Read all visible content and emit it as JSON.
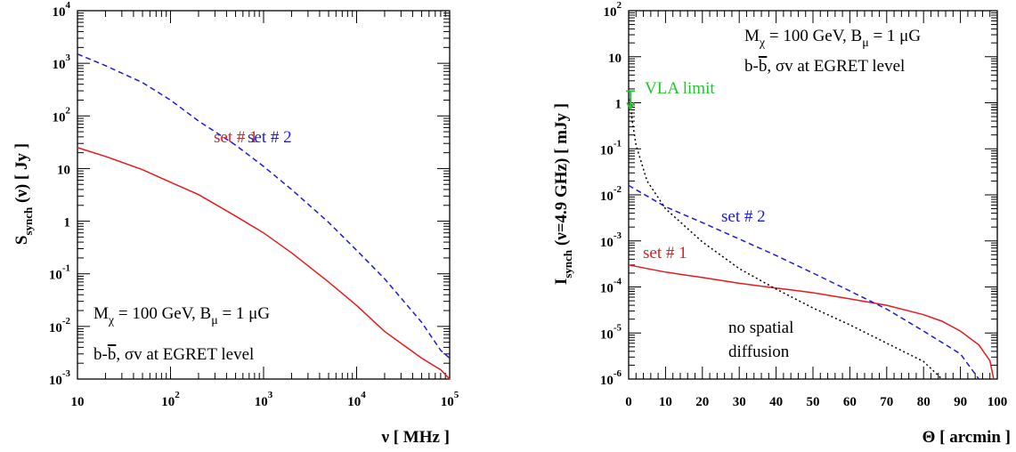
{
  "chart_data": [
    {
      "type": "line",
      "title": "",
      "xlabel": "ν [ MHz ]",
      "ylabel": "S_synch (ν) [ Jy ]",
      "xscale": "log",
      "yscale": "log",
      "xlim": [
        10,
        100000
      ],
      "ylim": [
        0.001,
        10000
      ],
      "x_ticks": [
        {
          "value": 10,
          "base": "10",
          "exp": ""
        },
        {
          "value": 100,
          "base": "10",
          "exp": "2"
        },
        {
          "value": 1000,
          "base": "10",
          "exp": "3"
        },
        {
          "value": 10000,
          "base": "10",
          "exp": "4"
        },
        {
          "value": 100000,
          "base": "10",
          "exp": "5"
        }
      ],
      "y_ticks": [
        {
          "value": 0.001,
          "base": "10",
          "exp": "-3"
        },
        {
          "value": 0.01,
          "base": "10",
          "exp": "-2"
        },
        {
          "value": 0.1,
          "base": "10",
          "exp": "-1"
        },
        {
          "value": 1,
          "base": "1",
          "exp": ""
        },
        {
          "value": 10,
          "base": "10",
          "exp": ""
        },
        {
          "value": 100,
          "base": "10",
          "exp": "2"
        },
        {
          "value": 1000,
          "base": "10",
          "exp": "3"
        },
        {
          "value": 10000,
          "base": "10",
          "exp": "4"
        }
      ],
      "series": [
        {
          "name": "set # 1",
          "color": "#e8191c",
          "dash": "solid",
          "x": [
            10,
            20,
            50,
            100,
            200,
            500,
            1000,
            2000,
            5000,
            10000,
            20000,
            50000,
            80000,
            100000
          ],
          "y": [
            25,
            17,
            9.5,
            5.5,
            3.2,
            1.25,
            0.6,
            0.25,
            0.07,
            0.025,
            0.008,
            0.0025,
            0.0015,
            0.001
          ]
        },
        {
          "name": "set # 2",
          "color": "#1a1adf",
          "dash": "dashed",
          "x": [
            10,
            20,
            50,
            100,
            200,
            500,
            1000,
            2000,
            5000,
            10000,
            20000,
            50000,
            80000,
            100000
          ],
          "y": [
            1500,
            900,
            430,
            200,
            80,
            28,
            11,
            4,
            0.95,
            0.28,
            0.08,
            0.012,
            0.0035,
            0.0025
          ]
        }
      ],
      "annotations": [
        {
          "text": "M",
          "sub": "χ",
          "rest": " = 100 GeV,  B",
          "sub2": "μ",
          "rest2": " = 1 μG"
        },
        {
          "text": "b-b̄,  σv at EGRET level"
        }
      ]
    },
    {
      "type": "line",
      "title": "",
      "xlabel": "Θ [ arcmin ]",
      "ylabel": "I_synch (ν=4.9 GHz) [ mJy ]",
      "xscale": "linear",
      "yscale": "log",
      "xlim": [
        0,
        100
      ],
      "ylim": [
        1e-06,
        100
      ],
      "x_ticks": [
        0,
        10,
        20,
        30,
        40,
        50,
        60,
        70,
        80,
        90,
        100
      ],
      "y_ticks": [
        {
          "value": 1e-06,
          "base": "10",
          "exp": "-6"
        },
        {
          "value": 1e-05,
          "base": "10",
          "exp": "-5"
        },
        {
          "value": 0.0001,
          "base": "10",
          "exp": "-4"
        },
        {
          "value": 0.001,
          "base": "10",
          "exp": "-3"
        },
        {
          "value": 0.01,
          "base": "10",
          "exp": "-2"
        },
        {
          "value": 0.1,
          "base": "10",
          "exp": "-1"
        },
        {
          "value": 1,
          "base": "1",
          "exp": ""
        },
        {
          "value": 10,
          "base": "10",
          "exp": ""
        },
        {
          "value": 100,
          "base": "10",
          "exp": "2"
        }
      ],
      "series": [
        {
          "name": "set # 1",
          "color": "#e8191c",
          "dash": "solid",
          "x": [
            0,
            10,
            20,
            30,
            40,
            50,
            60,
            70,
            80,
            85,
            90,
            95,
            98,
            99
          ],
          "y": [
            0.0003,
            0.00021,
            0.00016,
            0.00012,
            9.5e-05,
            7.5e-05,
            5.5e-05,
            4e-05,
            2.5e-05,
            1.8e-05,
            1.1e-05,
            5.5e-06,
            2.5e-06,
            1e-06
          ]
        },
        {
          "name": "set # 2",
          "color": "#1a1adf",
          "dash": "dashed",
          "x": [
            0,
            10,
            20,
            30,
            40,
            50,
            60,
            70,
            80,
            90,
            95
          ],
          "y": [
            0.016,
            0.0055,
            0.0025,
            0.0011,
            0.00048,
            0.0002,
            8.2e-05,
            3.3e-05,
            1.1e-05,
            3.5e-06,
            1e-06
          ]
        },
        {
          "name": "no spatial diffusion",
          "color": "#000000",
          "dash": "dotted",
          "x": [
            0.3,
            1,
            2,
            5,
            10,
            20,
            30,
            40,
            50,
            60,
            70,
            80,
            85
          ],
          "y": [
            1.2,
            0.4,
            0.12,
            0.02,
            0.005,
            0.00095,
            0.00025,
            9e-05,
            3.5e-05,
            1.5e-05,
            6e-06,
            2.4e-06,
            1e-06
          ]
        }
      ],
      "vla_limit": {
        "label": "VLA limit",
        "x": 0.5,
        "y": 1.05,
        "color": "#21c52f"
      },
      "annotations": [
        {
          "text": "M",
          "sub": "χ",
          "rest": " = 100 GeV,  B",
          "sub2": "μ",
          "rest2": " = 1 μG"
        },
        {
          "text": "b-b̄,  σv at EGRET level"
        },
        {
          "text": "no spatial"
        },
        {
          "text": "diffusion"
        }
      ]
    }
  ]
}
